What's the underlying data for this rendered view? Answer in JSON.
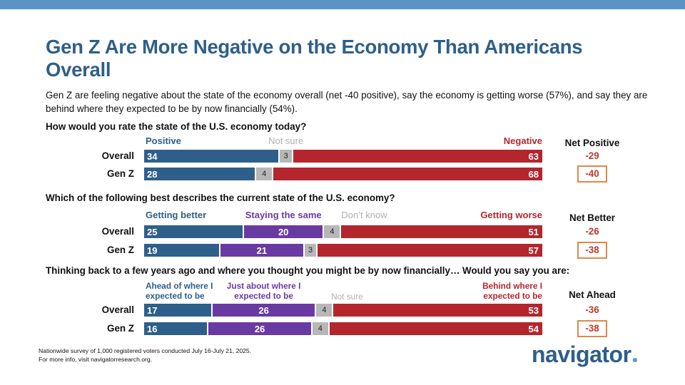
{
  "title": "Gen Z Are More Negative on the Economy Than Americans Overall",
  "subtitle": "Gen Z are feeling negative about the state of the economy overall (net -40 positive), say the economy is getting worse (57%), and say they are behind where they expected to be by now financially (54%).",
  "colors": {
    "topbar": "#5b93c7",
    "title": "#2e5f8a",
    "blue": "#2e5f8a",
    "purple": "#6a3aa3",
    "gray": "#b7b7b7",
    "red": "#b3262d",
    "net_red": "#c0392b",
    "box_orange": "#e0884a"
  },
  "chart_data": [
    {
      "type": "bar",
      "orientation": "horizontal-stacked",
      "question": "How would you rate the state of the U.S. economy today?",
      "categories": [
        "Overall",
        "Gen Z"
      ],
      "series": [
        {
          "name": "Positive",
          "values": [
            34,
            28
          ]
        },
        {
          "name": "Not sure",
          "values": [
            3,
            4
          ]
        },
        {
          "name": "Negative",
          "values": [
            63,
            68
          ]
        }
      ],
      "net_label": "Net Positive",
      "net_values": [
        "-29",
        "-40"
      ]
    },
    {
      "type": "bar",
      "orientation": "horizontal-stacked",
      "question": "Which of the following best describes the current state of the U.S. economy?",
      "categories": [
        "Overall",
        "Gen Z"
      ],
      "series": [
        {
          "name": "Getting better",
          "values": [
            25,
            19
          ]
        },
        {
          "name": "Staying the same",
          "values": [
            20,
            21
          ]
        },
        {
          "name": "Don’t know",
          "values": [
            4,
            3
          ]
        },
        {
          "name": "Getting worse",
          "values": [
            51,
            57
          ]
        }
      ],
      "net_label": "Net Better",
      "net_values": [
        "-26",
        "-38"
      ]
    },
    {
      "type": "bar",
      "orientation": "horizontal-stacked",
      "question": "Thinking back to a few years ago and where you thought you might be by now financially… Would you say you are:",
      "categories": [
        "Overall",
        "Gen Z"
      ],
      "series": [
        {
          "name": "Ahead of where I expected to be",
          "values": [
            17,
            16
          ]
        },
        {
          "name": "Just about where I expected to be",
          "values": [
            26,
            26
          ]
        },
        {
          "name": "Not sure",
          "values": [
            4,
            4
          ]
        },
        {
          "name": "Behind where I expected to be",
          "values": [
            53,
            54
          ]
        }
      ],
      "net_label": "Net Ahead",
      "net_values": [
        "-36",
        "-38"
      ]
    }
  ],
  "footnote": {
    "line1": "Nationwide survey of 1,000 registered voters conducted July 16-July 21, 2025.",
    "line2": "For more info, visit navigatorresearch.org."
  },
  "logo": "navigator"
}
